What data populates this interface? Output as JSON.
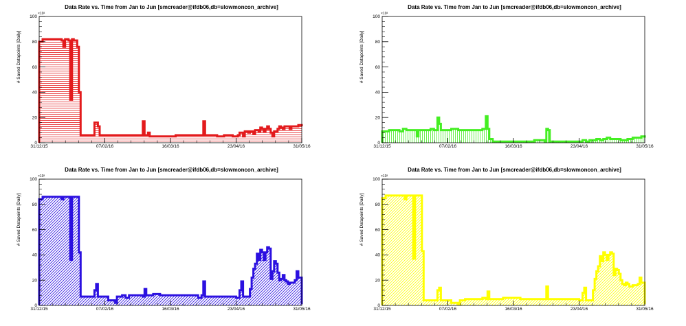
{
  "chart_data": [
    {
      "type": "area",
      "title": "Data Rate vs. Time from Jan to Jun [smcreader@ifdb06,db=slowmoncon_archive]",
      "xlabel": "",
      "ylabel": "# Saved Datapoints [Daily]",
      "y_multiplier_label": "×10³",
      "xlim": [
        0,
        152
      ],
      "ylim": [
        0,
        100
      ],
      "x_ticks": [
        {
          "x": 0,
          "label": "31/12/15"
        },
        {
          "x": 38,
          "label": "07/02/16"
        },
        {
          "x": 76,
          "label": "16/03/16"
        },
        {
          "x": 114,
          "label": "23/04/16"
        },
        {
          "x": 152,
          "label": "31/05/16"
        }
      ],
      "y_ticks": [
        0,
        20,
        40,
        60,
        80,
        100
      ],
      "color": "#e31a1c",
      "fill_style": "horizontal",
      "grid": false,
      "series": [
        {
          "points": [
            [
              0,
              80
            ],
            [
              2,
              82
            ],
            [
              10,
              82
            ],
            [
              13,
              81
            ],
            [
              14,
              76
            ],
            [
              15,
              82
            ],
            [
              17,
              81
            ],
            [
              18,
              34
            ],
            [
              19,
              82
            ],
            [
              20,
              81
            ],
            [
              22,
              76
            ],
            [
              23,
              40
            ],
            [
              24,
              6
            ],
            [
              31,
              6
            ],
            [
              32,
              16
            ],
            [
              33,
              16
            ],
            [
              34,
              13
            ],
            [
              35,
              6
            ],
            [
              59,
              6
            ],
            [
              60,
              17
            ],
            [
              61,
              6
            ],
            [
              63,
              8
            ],
            [
              64,
              5
            ],
            [
              78,
              5
            ],
            [
              79,
              6
            ],
            [
              94,
              6
            ],
            [
              95,
              17
            ],
            [
              96,
              6
            ],
            [
              103,
              5
            ],
            [
              107,
              6
            ],
            [
              112,
              5
            ],
            [
              115,
              6
            ],
            [
              116,
              8
            ],
            [
              118,
              5
            ],
            [
              119,
              9
            ],
            [
              121,
              8
            ],
            [
              122,
              9
            ],
            [
              124,
              7
            ],
            [
              125,
              10
            ],
            [
              127,
              9
            ],
            [
              128,
              12
            ],
            [
              129,
              11
            ],
            [
              130,
              9
            ],
            [
              131,
              11
            ],
            [
              132,
              13
            ],
            [
              133,
              11
            ],
            [
              134,
              8
            ],
            [
              135,
              5
            ],
            [
              136,
              9
            ],
            [
              138,
              11
            ],
            [
              139,
              13
            ],
            [
              140,
              12
            ],
            [
              141,
              11
            ],
            [
              142,
              13
            ],
            [
              145,
              11
            ],
            [
              146,
              13
            ],
            [
              150,
              14
            ],
            [
              152,
              13
            ]
          ]
        }
      ]
    },
    {
      "type": "area",
      "title": "Data Rate vs. Time from Jan to Jun [smcreader@ifdb06,db=slowmoncon_archive]",
      "xlabel": "",
      "ylabel": "# Saved Datapoints [Daily]",
      "y_multiplier_label": "×10³",
      "xlim": [
        0,
        152
      ],
      "ylim": [
        0,
        100
      ],
      "x_ticks": [
        {
          "x": 0,
          "label": "31/12/15"
        },
        {
          "x": 38,
          "label": "07/02/16"
        },
        {
          "x": 76,
          "label": "16/03/16"
        },
        {
          "x": 114,
          "label": "23/04/16"
        },
        {
          "x": 152,
          "label": "31/05/16"
        }
      ],
      "y_ticks": [
        0,
        20,
        40,
        60,
        80,
        100
      ],
      "color": "#44ee22",
      "fill_style": "vertical",
      "grid": false,
      "series": [
        {
          "points": [
            [
              0,
              9
            ],
            [
              4,
              10
            ],
            [
              8,
              10
            ],
            [
              10,
              9
            ],
            [
              12,
              11
            ],
            [
              14,
              10
            ],
            [
              18,
              10
            ],
            [
              20,
              5
            ],
            [
              21,
              10
            ],
            [
              26,
              10
            ],
            [
              28,
              11
            ],
            [
              30,
              10
            ],
            [
              32,
              20
            ],
            [
              33,
              15
            ],
            [
              34,
              10
            ],
            [
              40,
              11
            ],
            [
              44,
              10
            ],
            [
              52,
              10
            ],
            [
              58,
              11
            ],
            [
              60,
              21
            ],
            [
              61,
              11
            ],
            [
              62,
              3
            ],
            [
              64,
              1
            ],
            [
              80,
              1
            ],
            [
              86,
              1
            ],
            [
              88,
              2
            ],
            [
              94,
              1
            ],
            [
              95,
              11
            ],
            [
              96,
              10
            ],
            [
              97,
              1
            ],
            [
              115,
              1
            ],
            [
              116,
              2
            ],
            [
              118,
              1
            ],
            [
              120,
              2
            ],
            [
              124,
              3
            ],
            [
              126,
              2
            ],
            [
              128,
              3
            ],
            [
              130,
              4
            ],
            [
              132,
              3
            ],
            [
              134,
              3
            ],
            [
              138,
              2
            ],
            [
              142,
              3
            ],
            [
              145,
              4
            ],
            [
              148,
              4
            ],
            [
              150,
              5
            ],
            [
              152,
              4
            ]
          ]
        }
      ]
    },
    {
      "type": "area",
      "title": "Data Rate vs. Time from Jan to Jun [smcreader@ifdb06,db=slowmoncon_archive]",
      "xlabel": "",
      "ylabel": "# Saved Datapoints [Daily]",
      "y_multiplier_label": "×10³",
      "xlim": [
        0,
        152
      ],
      "ylim": [
        0,
        100
      ],
      "x_ticks": [
        {
          "x": 0,
          "label": "31/12/15"
        },
        {
          "x": 38,
          "label": "07/02/16"
        },
        {
          "x": 76,
          "label": "16/03/16"
        },
        {
          "x": 114,
          "label": "23/04/16"
        },
        {
          "x": 152,
          "label": "31/05/16"
        }
      ],
      "y_ticks": [
        0,
        20,
        40,
        60,
        80,
        100
      ],
      "color": "#2b10e0",
      "fill_style": "hatched",
      "grid": false,
      "series": [
        {
          "points": [
            [
              0,
              84
            ],
            [
              2,
              86
            ],
            [
              10,
              86
            ],
            [
              12,
              86
            ],
            [
              13,
              84
            ],
            [
              14,
              86
            ],
            [
              17,
              86
            ],
            [
              18,
              36
            ],
            [
              19,
              86
            ],
            [
              22,
              86
            ],
            [
              23,
              42
            ],
            [
              24,
              7
            ],
            [
              31,
              7
            ],
            [
              32,
              12
            ],
            [
              33,
              17
            ],
            [
              34,
              7
            ],
            [
              38,
              7
            ],
            [
              40,
              4
            ],
            [
              44,
              2
            ],
            [
              45,
              7
            ],
            [
              48,
              8
            ],
            [
              50,
              6
            ],
            [
              52,
              8
            ],
            [
              56,
              8
            ],
            [
              60,
              7
            ],
            [
              61,
              13
            ],
            [
              62,
              8
            ],
            [
              66,
              9
            ],
            [
              70,
              8
            ],
            [
              80,
              8
            ],
            [
              86,
              8
            ],
            [
              92,
              6
            ],
            [
              94,
              8
            ],
            [
              95,
              19
            ],
            [
              96,
              7
            ],
            [
              110,
              7
            ],
            [
              114,
              6
            ],
            [
              116,
              12
            ],
            [
              117,
              19
            ],
            [
              118,
              7
            ],
            [
              122,
              13
            ],
            [
              123,
              22
            ],
            [
              124,
              29
            ],
            [
              125,
              33
            ],
            [
              126,
              41
            ],
            [
              127,
              36
            ],
            [
              128,
              44
            ],
            [
              129,
              42
            ],
            [
              130,
              36
            ],
            [
              131,
              42
            ],
            [
              132,
              46
            ],
            [
              133,
              45
            ],
            [
              134,
              21
            ],
            [
              135,
              27
            ],
            [
              136,
              35
            ],
            [
              137,
              33
            ],
            [
              138,
              26
            ],
            [
              139,
              20
            ],
            [
              140,
              21
            ],
            [
              141,
              24
            ],
            [
              142,
              20
            ],
            [
              143,
              19
            ],
            [
              144,
              17
            ],
            [
              145,
              18
            ],
            [
              148,
              20
            ],
            [
              149,
              27
            ],
            [
              150,
              22
            ],
            [
              152,
              1
            ]
          ]
        }
      ]
    },
    {
      "type": "area",
      "title": "Data Rate vs. Time from Jan to Jun [smcreader@ifdb06,db=slowmoncon_archive]",
      "xlabel": "",
      "ylabel": "# Saved Datapoints [Daily]",
      "y_multiplier_label": "×10³",
      "xlim": [
        0,
        152
      ],
      "ylim": [
        0,
        100
      ],
      "x_ticks": [
        {
          "x": 0,
          "label": "31/12/15"
        },
        {
          "x": 38,
          "label": "07/02/16"
        },
        {
          "x": 76,
          "label": "16/03/16"
        },
        {
          "x": 114,
          "label": "23/04/16"
        },
        {
          "x": 152,
          "label": "31/05/16"
        }
      ],
      "y_ticks": [
        0,
        20,
        40,
        60,
        80,
        100
      ],
      "color": "#ffff00",
      "fill_style": "hatched",
      "grid": false,
      "series": [
        {
          "points": [
            [
              0,
              85
            ],
            [
              2,
              87
            ],
            [
              10,
              87
            ],
            [
              12,
              87
            ],
            [
              13,
              84
            ],
            [
              14,
              87
            ],
            [
              17,
              87
            ],
            [
              18,
              37
            ],
            [
              19,
              87
            ],
            [
              22,
              87
            ],
            [
              23,
              43
            ],
            [
              24,
              4
            ],
            [
              31,
              4
            ],
            [
              32,
              12
            ],
            [
              33,
              14
            ],
            [
              34,
              4
            ],
            [
              38,
              4
            ],
            [
              40,
              2
            ],
            [
              44,
              1
            ],
            [
              45,
              4
            ],
            [
              48,
              5
            ],
            [
              52,
              5
            ],
            [
              58,
              6
            ],
            [
              60,
              5
            ],
            [
              61,
              11
            ],
            [
              62,
              5
            ],
            [
              66,
              5
            ],
            [
              70,
              6
            ],
            [
              80,
              5
            ],
            [
              90,
              5
            ],
            [
              94,
              5
            ],
            [
              95,
              15
            ],
            [
              96,
              5
            ],
            [
              110,
              5
            ],
            [
              114,
              4
            ],
            [
              116,
              10
            ],
            [
              117,
              14
            ],
            [
              118,
              4
            ],
            [
              122,
              12
            ],
            [
              123,
              21
            ],
            [
              124,
              27
            ],
            [
              125,
              31
            ],
            [
              126,
              39
            ],
            [
              127,
              35
            ],
            [
              128,
              42
            ],
            [
              129,
              40
            ],
            [
              130,
              36
            ],
            [
              131,
              40
            ],
            [
              132,
              42
            ],
            [
              133,
              41
            ],
            [
              134,
              24
            ],
            [
              135,
              29
            ],
            [
              136,
              28
            ],
            [
              137,
              25
            ],
            [
              138,
              20
            ],
            [
              139,
              17
            ],
            [
              140,
              16
            ],
            [
              141,
              18
            ],
            [
              142,
              17
            ],
            [
              143,
              15
            ],
            [
              144,
              15
            ],
            [
              145,
              16
            ],
            [
              148,
              17
            ],
            [
              149,
              22
            ],
            [
              150,
              18
            ],
            [
              152,
              1
            ]
          ]
        }
      ]
    }
  ]
}
